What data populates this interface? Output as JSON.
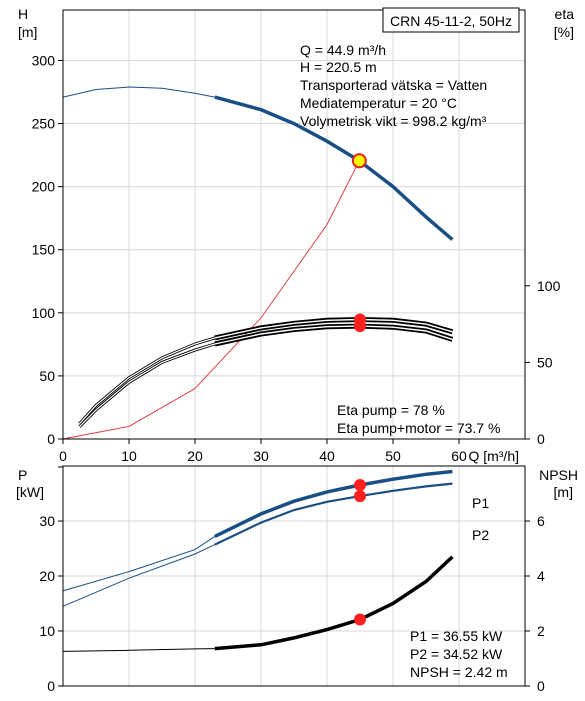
{
  "title_box": "CRN 45-11-2, 50Hz",
  "colors": {
    "head": "#1a4f86",
    "system": "#e03030",
    "eta": "#000000",
    "point_fill": "#ffff00",
    "point_stroke": "#e02020",
    "marker": "#ff2020"
  },
  "info_top": [
    "Q = 44.9 m³/h",
    "H = 220.5 m",
    "Transporterad vätska = Vatten",
    "Mediatemperatur = 20 °C",
    "Volymetrisk vikt = 998.2 kg/m³"
  ],
  "info_eta": [
    "Eta pump = 78 %",
    "Eta pump+motor = 73.7 %"
  ],
  "info_bottom": [
    "P1 = 36.55 kW",
    "P2 = 34.52 kW",
    "NPSH = 2.42 m"
  ],
  "chart_data": [
    {
      "type": "line",
      "ylabel_left": [
        "H",
        "[m]"
      ],
      "ylabel_right": [
        "eta",
        "[%]"
      ],
      "xlabel": "Q [m³/h]",
      "xlim": [
        0,
        70
      ],
      "ylim": [
        0,
        340
      ],
      "ylim_right": [
        0,
        280
      ],
      "x_ticks": [
        0,
        10,
        20,
        30,
        40,
        50,
        60
      ],
      "y_ticks": [
        0,
        50,
        100,
        150,
        200,
        250,
        300
      ],
      "y_ticks_right": [
        0,
        50,
        100
      ],
      "duty_point": {
        "x": 44.9,
        "y": 220.5
      },
      "series": [
        {
          "name": "H",
          "thin": [
            [
              0,
              271
            ],
            [
              5,
              277
            ],
            [
              10,
              279
            ],
            [
              15,
              278
            ],
            [
              20,
              274
            ],
            [
              23,
              271
            ]
          ],
          "thick": [
            [
              23,
              271
            ],
            [
              30,
              261
            ],
            [
              35,
              250
            ],
            [
              40,
              236
            ],
            [
              44.9,
              220.5
            ],
            [
              50,
              200
            ],
            [
              55,
              176
            ],
            [
              59,
              158
            ]
          ]
        },
        {
          "name": "system",
          "thin": [
            [
              0,
              0
            ],
            [
              10,
              10
            ],
            [
              20,
              40
            ],
            [
              30,
              96
            ],
            [
              40,
              170
            ],
            [
              44.9,
              220.5
            ]
          ]
        },
        {
          "name": "Eta pump",
          "thin": [
            [
              2.5,
              10
            ],
            [
              5,
              22
            ],
            [
              10,
              40
            ],
            [
              15,
              53
            ],
            [
              20,
              62
            ],
            [
              23,
              66
            ]
          ],
          "thick": [
            [
              23,
              66
            ],
            [
              30,
              72.5
            ],
            [
              35,
              75.5
            ],
            [
              40,
              77.5
            ],
            [
              45,
              78
            ],
            [
              50,
              77.5
            ],
            [
              55,
              75
            ],
            [
              59,
              70
            ]
          ],
          "marker": {
            "x": 45,
            "y": 78
          }
        },
        {
          "name": "Eta pump+motor",
          "thin": [
            [
              2.5,
              8
            ],
            [
              5,
              19
            ],
            [
              10,
              37
            ],
            [
              15,
              50
            ],
            [
              20,
              58
            ],
            [
              23,
              62
            ]
          ],
          "thick": [
            [
              23,
              62
            ],
            [
              30,
              68.5
            ],
            [
              35,
              71.5
            ],
            [
              40,
              73.3
            ],
            [
              45,
              73.7
            ],
            [
              50,
              73
            ],
            [
              55,
              70.5
            ],
            [
              59,
              65
            ]
          ],
          "marker": {
            "x": 45,
            "y": 73.7
          }
        }
      ]
    },
    {
      "type": "line",
      "ylabel_left": [
        "P",
        "[kW]"
      ],
      "ylabel_right": [
        "NPSH",
        "[m]"
      ],
      "xlim": [
        0,
        70
      ],
      "ylim": [
        0,
        40
      ],
      "ylim_right": [
        0,
        8
      ],
      "y_ticks": [
        0,
        10,
        20,
        30
      ],
      "y_ticks_right": [
        0,
        2,
        4,
        6
      ],
      "series": [
        {
          "name": "P1",
          "thin": [
            [
              0,
              17.3
            ],
            [
              10,
              20.8
            ],
            [
              20,
              24.8
            ],
            [
              23,
              27.2
            ]
          ],
          "thick": [
            [
              23,
              27.2
            ],
            [
              30,
              31.3
            ],
            [
              35,
              33.6
            ],
            [
              40,
              35.3
            ],
            [
              45,
              36.55
            ],
            [
              50,
              37.6
            ],
            [
              55,
              38.5
            ],
            [
              59,
              39.0
            ]
          ],
          "marker": {
            "x": 45,
            "y": 36.55
          }
        },
        {
          "name": "P2",
          "thin": [
            [
              0,
              14.5
            ],
            [
              10,
              19.6
            ],
            [
              20,
              24
            ],
            [
              23,
              25.7
            ]
          ],
          "thick": [
            [
              23,
              25.7
            ],
            [
              30,
              29.7
            ],
            [
              35,
              32
            ],
            [
              40,
              33.5
            ],
            [
              45,
              34.52
            ],
            [
              50,
              35.5
            ],
            [
              55,
              36.3
            ],
            [
              59,
              36.8
            ]
          ],
          "marker": {
            "x": 45,
            "y": 34.52
          }
        },
        {
          "name": "NPSH",
          "thin": [
            [
              0,
              1.26
            ],
            [
              10,
              1.3
            ],
            [
              20,
              1.35
            ],
            [
              23,
              1.36
            ]
          ],
          "thick": [
            [
              23,
              1.36
            ],
            [
              30,
              1.5
            ],
            [
              35,
              1.75
            ],
            [
              40,
              2.05
            ],
            [
              45,
              2.42
            ],
            [
              50,
              3.0
            ],
            [
              55,
              3.8
            ],
            [
              59,
              4.7
            ]
          ],
          "marker": {
            "x": 45,
            "y": 2.42
          }
        }
      ]
    }
  ]
}
